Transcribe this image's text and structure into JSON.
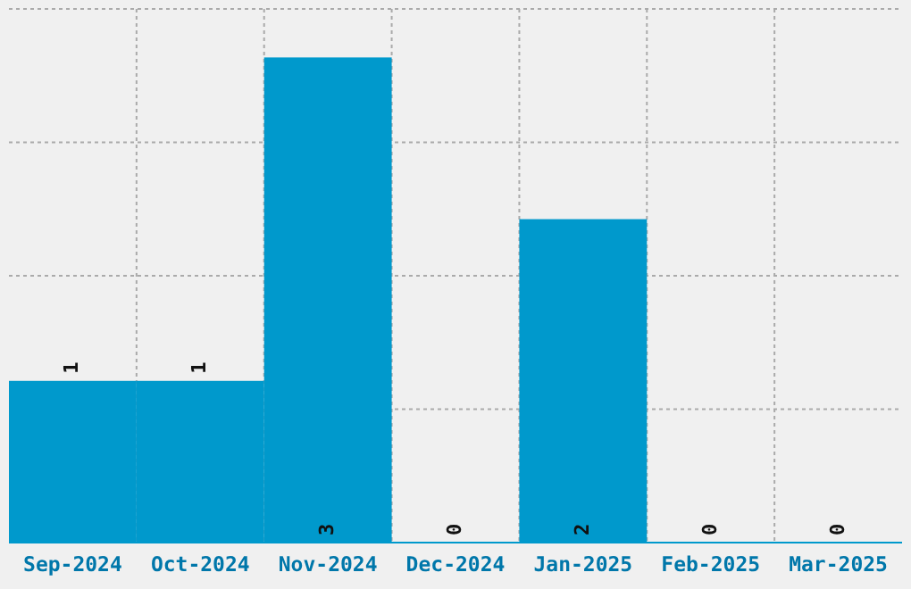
{
  "chart_data": {
    "type": "bar",
    "categories": [
      "Sep-2024",
      "Oct-2024",
      "Nov-2024",
      "Dec-2024",
      "Jan-2025",
      "Feb-2025",
      "Mar-2025"
    ],
    "values": [
      1,
      1,
      3,
      0,
      2,
      0,
      0
    ],
    "color": "#0099cc",
    "data_labels": true,
    "grid": true,
    "tick_labels": "x",
    "ylim": [
      0,
      3.3
    ],
    "yticks": [
      {
        "value": 0.825,
        "label": null
      },
      {
        "value": 1.65,
        "label": null
      },
      {
        "value": 2.475,
        "label": null
      },
      {
        "value": 3.3,
        "label": null
      }
    ]
  }
}
